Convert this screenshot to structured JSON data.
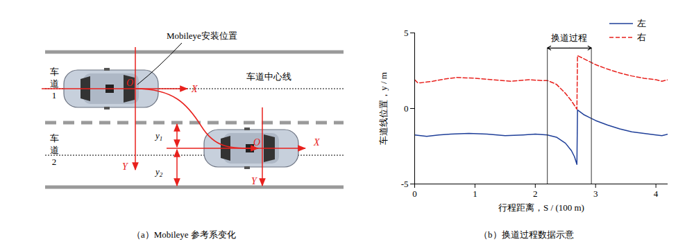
{
  "diagram": {
    "caption": "（a）Mobileye 参考系变化",
    "mobileye_label": "Mobileye安装位置",
    "lane_center_label": "车道中心线",
    "lanes": [
      "车道1",
      "车道2"
    ],
    "axis_labels": {
      "x": "X",
      "y": "Y",
      "origin": "O"
    },
    "offsets": [
      "y1",
      "y2"
    ]
  },
  "chart_data": {
    "type": "line",
    "caption": "（b）换道过程数据示意",
    "x_label": "行程距离，S / (100 m)",
    "y_label": "车道线位置，y / m",
    "xlim": [
      0,
      4.2
    ],
    "xticks": [
      0,
      1,
      2,
      3,
      4
    ],
    "ylim": [
      -5,
      5
    ],
    "yticks": [
      -5,
      0,
      5
    ],
    "legend": "top-right",
    "annotation": {
      "label": "换道过程",
      "x": [
        2.2,
        2.93
      ],
      "y": 4
    },
    "series": [
      {
        "name": "左",
        "color": "#1f3f99",
        "line_style": "solid",
        "x": [
          0,
          0.1,
          0.2,
          0.4,
          0.6,
          0.9,
          1.2,
          1.5,
          1.8,
          2.0,
          2.2,
          2.35,
          2.5,
          2.6,
          2.65,
          2.69,
          2.7,
          2.8,
          2.9,
          3.0,
          3.2,
          3.4,
          3.6,
          3.8,
          4.0,
          4.1,
          4.2
        ],
        "values": [
          -1.75,
          -1.8,
          -1.85,
          -1.75,
          -1.7,
          -1.65,
          -1.7,
          -1.8,
          -1.75,
          -1.7,
          -1.75,
          -1.9,
          -2.3,
          -2.8,
          -3.2,
          -3.7,
          -0.1,
          -0.4,
          -0.6,
          -0.8,
          -1.1,
          -1.35,
          -1.55,
          -1.65,
          -1.75,
          -1.8,
          -1.7
        ]
      },
      {
        "name": "右",
        "color": "#e8201c",
        "line_style": "dashed",
        "x": [
          0,
          0.05,
          0.1,
          0.3,
          0.5,
          0.7,
          1.0,
          1.3,
          1.6,
          1.9,
          2.1,
          2.2,
          2.35,
          2.5,
          2.6,
          2.69,
          2.7,
          2.8,
          3.0,
          3.2,
          3.4,
          3.6,
          3.8,
          4.0,
          4.1,
          4.2
        ],
        "values": [
          1.9,
          1.7,
          1.7,
          1.8,
          1.95,
          2.05,
          2.0,
          1.9,
          1.8,
          1.9,
          1.85,
          1.85,
          1.6,
          1.0,
          0.5,
          -0.05,
          3.5,
          3.3,
          2.9,
          2.6,
          2.35,
          2.15,
          2.0,
          1.9,
          1.8,
          1.9
        ]
      }
    ]
  }
}
